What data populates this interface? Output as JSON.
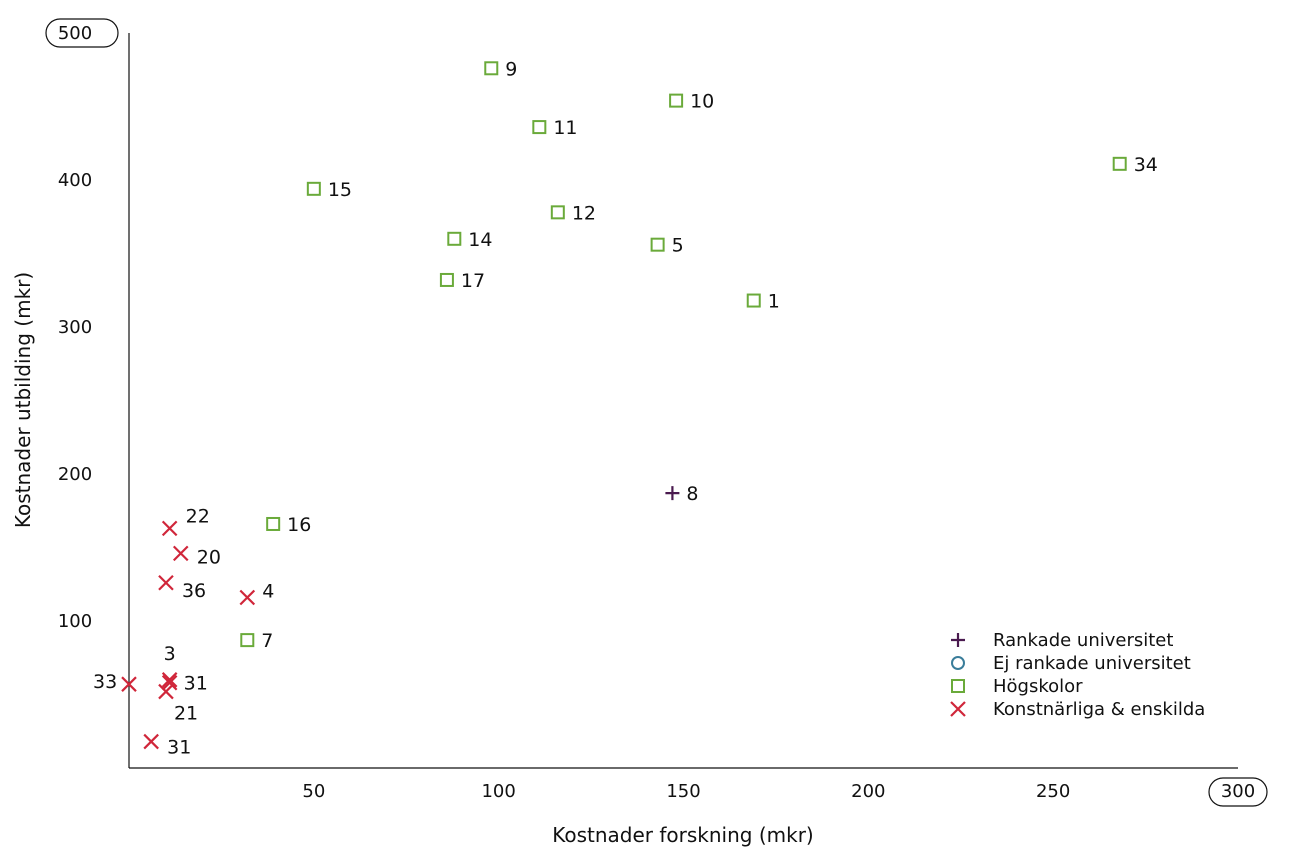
{
  "chart_data": {
    "type": "scatter",
    "xlabel": "Kostnader forskning (mkr)",
    "ylabel": "Kostnader utbilding (mkr)",
    "xlim": [
      0,
      300
    ],
    "ylim": [
      0,
      500
    ],
    "x_ticks": [
      {
        "value": 50,
        "label": "50"
      },
      {
        "value": 100,
        "label": "100"
      },
      {
        "value": 150,
        "label": "150"
      },
      {
        "value": 200,
        "label": "200"
      },
      {
        "value": 250,
        "label": "250"
      },
      {
        "value": 300,
        "label": "300",
        "boxed": true
      }
    ],
    "y_ticks": [
      {
        "value": 100,
        "label": "100"
      },
      {
        "value": 200,
        "label": "200"
      },
      {
        "value": 300,
        "label": "300"
      },
      {
        "value": 400,
        "label": "400"
      },
      {
        "value": 500,
        "label": "500",
        "boxed": true
      }
    ],
    "grid": false,
    "legend_position": "bottom-right",
    "series": [
      {
        "name": "Rankade universitet",
        "marker": "plus",
        "color": "#4a1a4f",
        "points": [
          {
            "label": "8",
            "x": 147,
            "y": 187
          }
        ]
      },
      {
        "name": "Ej rankade universitet",
        "marker": "circle",
        "color": "#3a7d9a",
        "points": []
      },
      {
        "name": "Högskolor",
        "marker": "square",
        "color": "#6aaa3a",
        "points": [
          {
            "label": "9",
            "x": 98,
            "y": 476
          },
          {
            "label": "10",
            "x": 148,
            "y": 454
          },
          {
            "label": "11",
            "x": 111,
            "y": 436
          },
          {
            "label": "34",
            "x": 268,
            "y": 411
          },
          {
            "label": "15",
            "x": 50,
            "y": 394
          },
          {
            "label": "12",
            "x": 116,
            "y": 378
          },
          {
            "label": "14",
            "x": 88,
            "y": 360
          },
          {
            "label": "5",
            "x": 143,
            "y": 356
          },
          {
            "label": "17",
            "x": 86,
            "y": 332
          },
          {
            "label": "1",
            "x": 169,
            "y": 318
          },
          {
            "label": "16",
            "x": 39,
            "y": 166
          },
          {
            "label": "7",
            "x": 32,
            "y": 87
          }
        ]
      },
      {
        "name": "Konstnärliga & enskilda",
        "marker": "x",
        "color": "#d0263a",
        "points": [
          {
            "label": "22",
            "x": 11,
            "y": 163
          },
          {
            "label": "20",
            "x": 14,
            "y": 146
          },
          {
            "label": "36",
            "x": 10,
            "y": 126
          },
          {
            "label": "4",
            "x": 32,
            "y": 116
          },
          {
            "label": "3",
            "x": 11,
            "y": 60
          },
          {
            "label": "31",
            "x": 11,
            "y": 58
          },
          {
            "label": "33",
            "x": 0,
            "y": 57
          },
          {
            "label": "21",
            "x": 10,
            "y": 52
          },
          {
            "label": "31",
            "x": 6,
            "y": 18
          }
        ]
      }
    ]
  }
}
